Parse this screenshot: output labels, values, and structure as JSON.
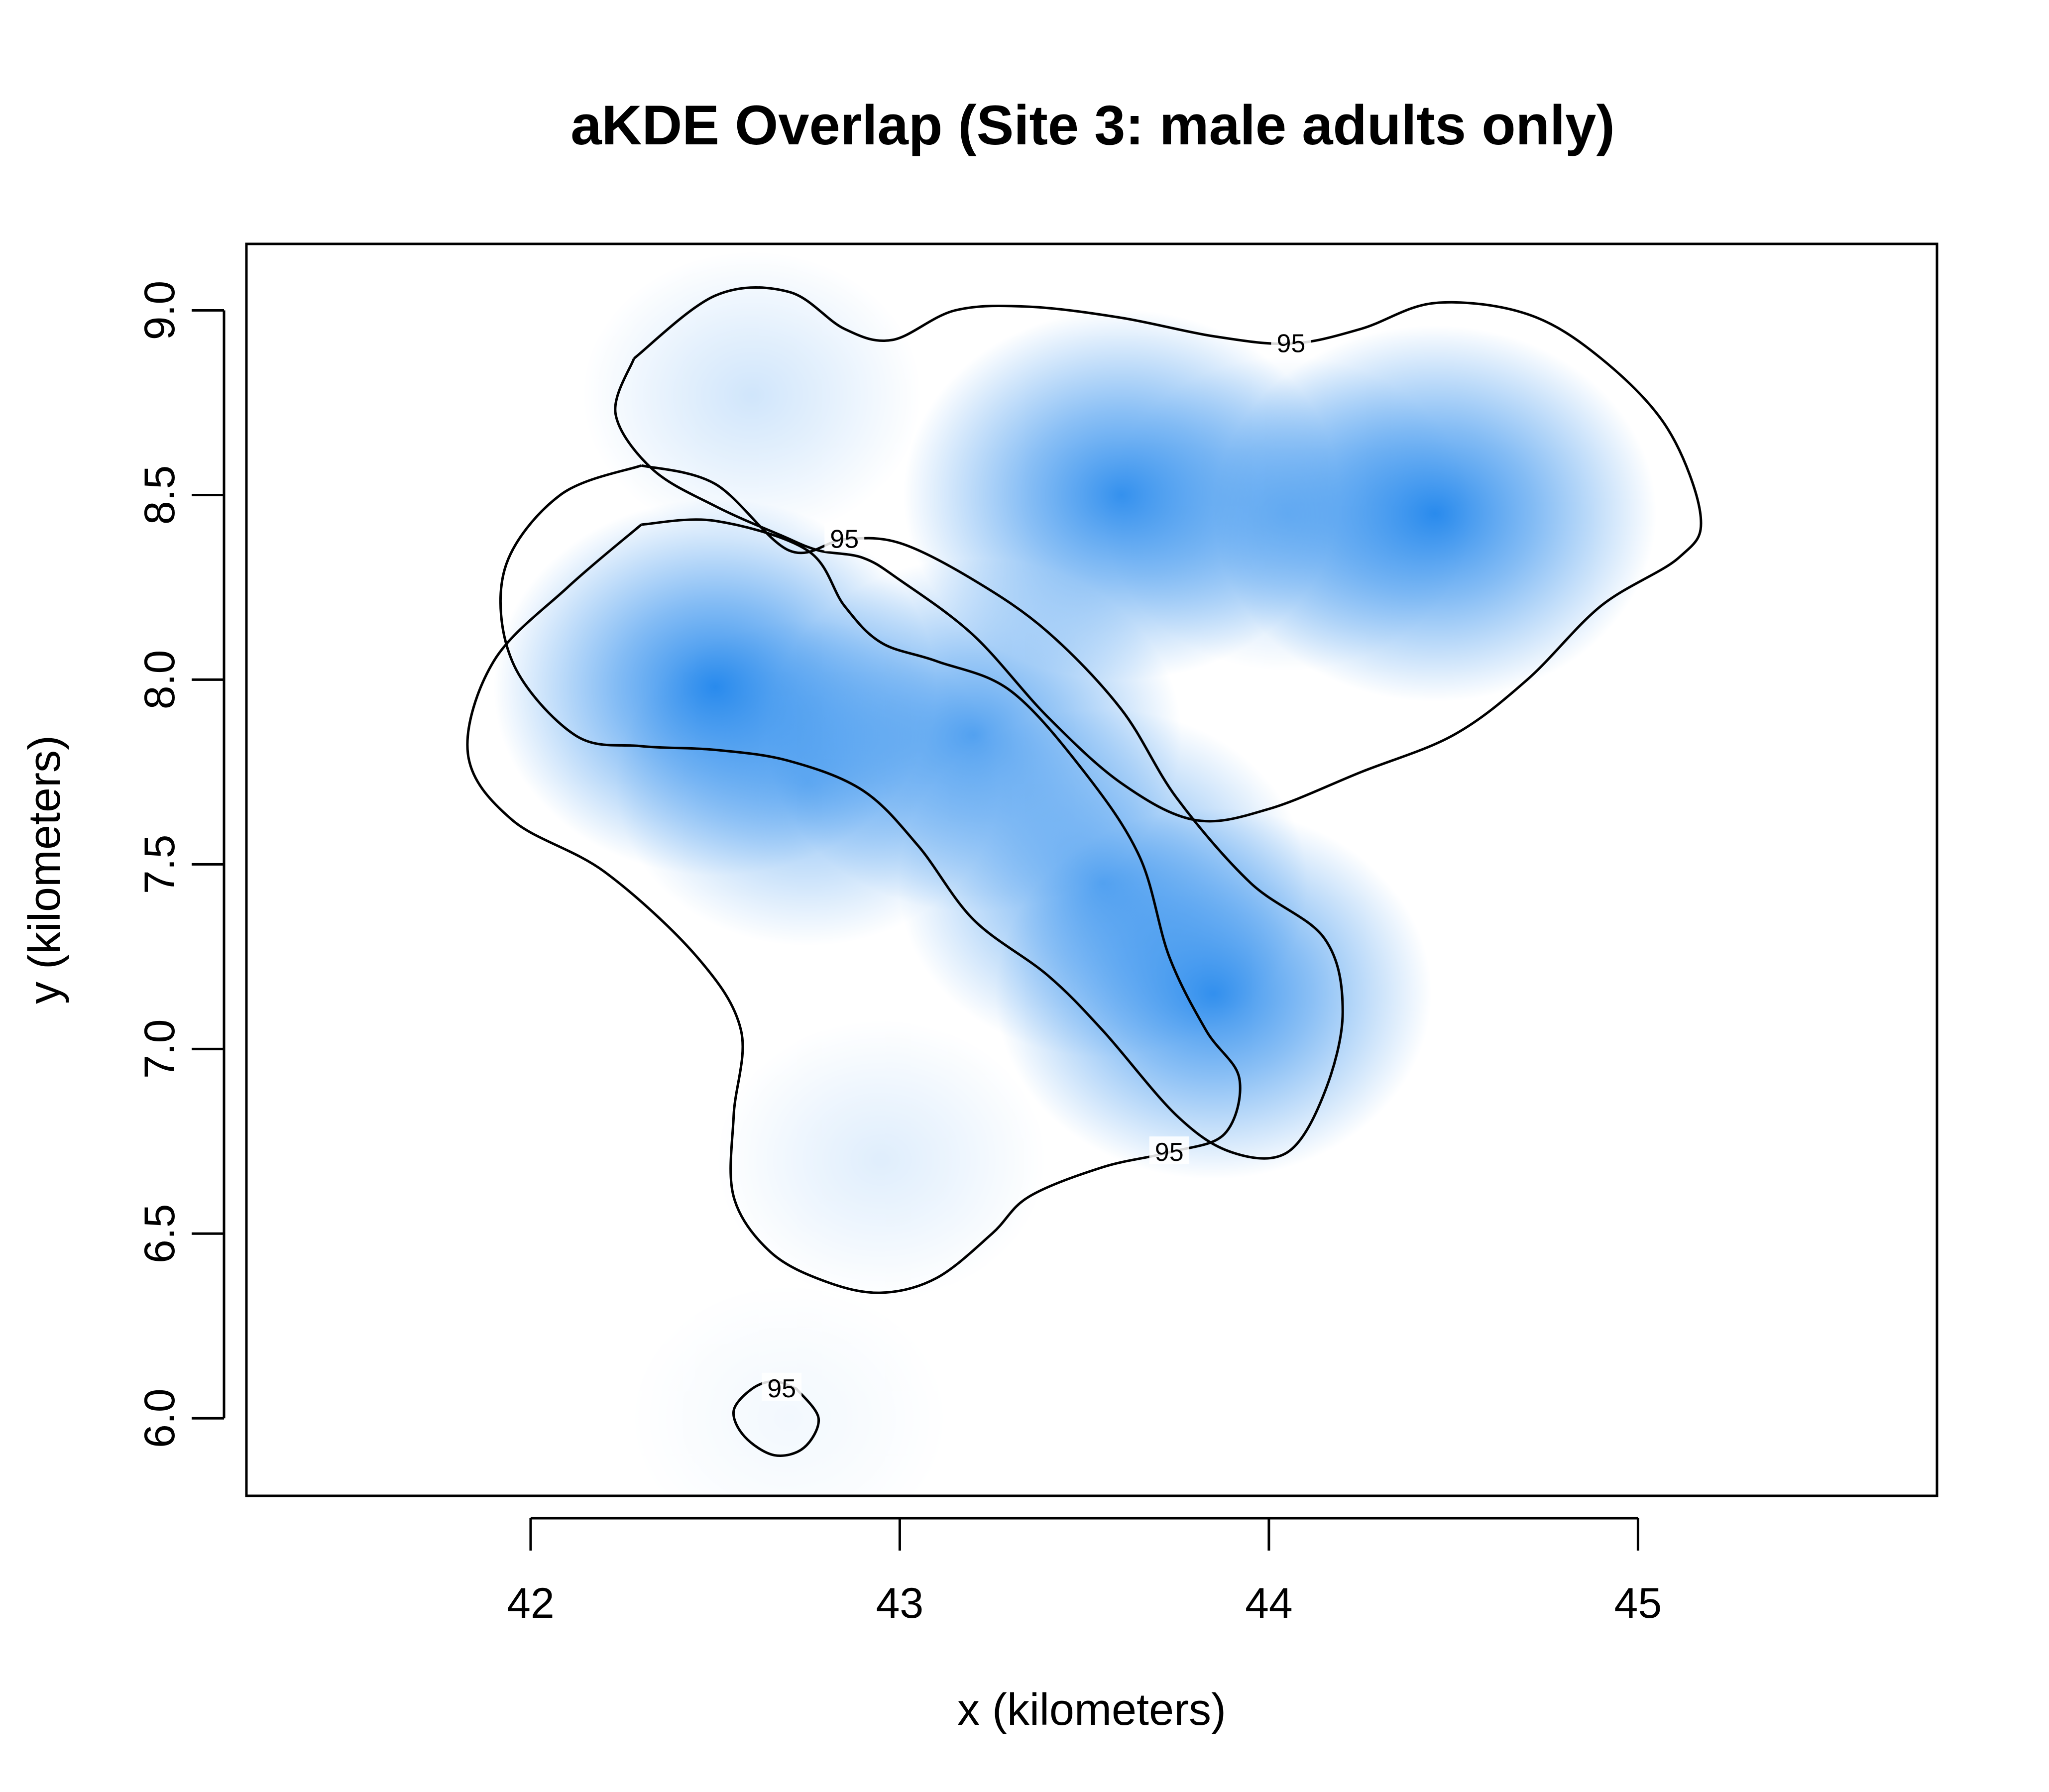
{
  "chart_data": {
    "type": "heatmap",
    "title": "aKDE Overlap (Site 3: male adults only)",
    "xlabel": "x (kilometers)",
    "ylabel": "y (kilometers)",
    "xlim": [
      41.23,
      45.81
    ],
    "ylim": [
      5.79,
      9.18
    ],
    "x_ticks": [
      42,
      43,
      44,
      45
    ],
    "y_ticks": [
      6.0,
      6.5,
      7.0,
      7.5,
      8.0,
      8.5,
      9.0
    ],
    "x_tick_labels": [
      "42",
      "43",
      "44",
      "45"
    ],
    "y_tick_labels": [
      "6.0",
      "6.5",
      "7.0",
      "7.5",
      "8.0",
      "8.5",
      "9.0"
    ],
    "grid": false,
    "legend": "none",
    "colors": {
      "density": "#1f85ec",
      "background": "#ffffff",
      "contour": "#000000"
    },
    "density_peaks": [
      {
        "x": 42.5,
        "y": 7.98,
        "weight": 1.0
      },
      {
        "x": 42.75,
        "y": 7.72,
        "weight": 0.55
      },
      {
        "x": 43.2,
        "y": 7.85,
        "weight": 0.8
      },
      {
        "x": 43.55,
        "y": 7.45,
        "weight": 0.75
      },
      {
        "x": 43.85,
        "y": 7.15,
        "weight": 0.95
      },
      {
        "x": 43.6,
        "y": 8.5,
        "weight": 0.95
      },
      {
        "x": 44.45,
        "y": 8.45,
        "weight": 1.0
      },
      {
        "x": 44.05,
        "y": 8.45,
        "weight": 0.45
      },
      {
        "x": 42.6,
        "y": 8.77,
        "weight": 0.22
      },
      {
        "x": 42.95,
        "y": 6.7,
        "weight": 0.15
      },
      {
        "x": 42.7,
        "y": 6.0,
        "weight": 0.06
      }
    ],
    "contour_level_label": "95",
    "contours": [
      {
        "label": "95",
        "label_at": [
          44.06,
          8.91
        ],
        "points": [
          [
            42.28,
            8.87
          ],
          [
            42.5,
            9.04
          ],
          [
            42.7,
            9.05
          ],
          [
            42.85,
            8.95
          ],
          [
            42.98,
            8.92
          ],
          [
            43.15,
            9.0
          ],
          [
            43.35,
            9.01
          ],
          [
            43.6,
            8.98
          ],
          [
            43.85,
            8.93
          ],
          [
            44.06,
            8.91
          ],
          [
            44.25,
            8.95
          ],
          [
            44.45,
            9.02
          ],
          [
            44.7,
            8.99
          ],
          [
            44.9,
            8.87
          ],
          [
            45.08,
            8.68
          ],
          [
            45.17,
            8.44
          ],
          [
            45.11,
            8.33
          ],
          [
            44.9,
            8.2
          ],
          [
            44.7,
            8.0
          ],
          [
            44.5,
            7.85
          ],
          [
            44.25,
            7.75
          ],
          [
            44.0,
            7.65
          ],
          [
            43.8,
            7.62
          ],
          [
            43.6,
            7.72
          ],
          [
            43.4,
            7.9
          ],
          [
            43.2,
            8.12
          ],
          [
            43.0,
            8.27
          ],
          [
            42.9,
            8.33
          ],
          [
            42.78,
            8.35
          ],
          [
            42.68,
            8.39
          ],
          [
            42.5,
            8.47
          ],
          [
            42.33,
            8.57
          ],
          [
            42.23,
            8.72
          ],
          [
            42.28,
            8.87
          ]
        ]
      },
      {
        "label": "95",
        "label_at": [
          42.85,
          8.38
        ],
        "points": [
          [
            42.3,
            8.58
          ],
          [
            42.5,
            8.53
          ],
          [
            42.7,
            8.35
          ],
          [
            42.85,
            8.38
          ],
          [
            43.0,
            8.37
          ],
          [
            43.2,
            8.27
          ],
          [
            43.4,
            8.13
          ],
          [
            43.6,
            7.92
          ],
          [
            43.75,
            7.68
          ],
          [
            43.95,
            7.45
          ],
          [
            44.15,
            7.3
          ],
          [
            44.2,
            7.1
          ],
          [
            44.15,
            6.88
          ],
          [
            44.05,
            6.72
          ],
          [
            43.9,
            6.72
          ],
          [
            43.75,
            6.82
          ],
          [
            43.55,
            7.05
          ],
          [
            43.4,
            7.2
          ],
          [
            43.2,
            7.35
          ],
          [
            43.05,
            7.55
          ],
          [
            42.9,
            7.7
          ],
          [
            42.7,
            7.78
          ],
          [
            42.5,
            7.81
          ],
          [
            42.3,
            7.82
          ],
          [
            42.12,
            7.85
          ],
          [
            41.95,
            8.05
          ],
          [
            41.93,
            8.3
          ],
          [
            42.08,
            8.5
          ],
          [
            42.3,
            8.58
          ]
        ]
      },
      {
        "label": "95",
        "label_at": [
          43.73,
          6.72
        ],
        "points": [
          [
            42.3,
            8.42
          ],
          [
            42.5,
            8.43
          ],
          [
            42.75,
            8.35
          ],
          [
            42.85,
            8.2
          ],
          [
            42.95,
            8.1
          ],
          [
            43.1,
            8.05
          ],
          [
            43.3,
            7.97
          ],
          [
            43.5,
            7.75
          ],
          [
            43.65,
            7.52
          ],
          [
            43.73,
            7.25
          ],
          [
            43.83,
            7.05
          ],
          [
            43.92,
            6.92
          ],
          [
            43.88,
            6.77
          ],
          [
            43.73,
            6.72
          ],
          [
            43.55,
            6.68
          ],
          [
            43.35,
            6.6
          ],
          [
            43.25,
            6.5
          ],
          [
            43.1,
            6.38
          ],
          [
            42.95,
            6.34
          ],
          [
            42.8,
            6.37
          ],
          [
            42.65,
            6.45
          ],
          [
            42.55,
            6.6
          ],
          [
            42.55,
            6.82
          ],
          [
            42.57,
            7.05
          ],
          [
            42.45,
            7.25
          ],
          [
            42.2,
            7.48
          ],
          [
            41.95,
            7.62
          ],
          [
            41.83,
            7.8
          ],
          [
            41.9,
            8.05
          ],
          [
            42.1,
            8.25
          ],
          [
            42.3,
            8.42
          ]
        ]
      },
      {
        "label": "95",
        "label_at": [
          42.68,
          6.08
        ],
        "points": [
          [
            42.72,
            6.08
          ],
          [
            42.78,
            6.0
          ],
          [
            42.74,
            5.92
          ],
          [
            42.66,
            5.9
          ],
          [
            42.58,
            5.95
          ],
          [
            42.55,
            6.02
          ],
          [
            42.6,
            6.08
          ],
          [
            42.66,
            6.1
          ],
          [
            42.72,
            6.08
          ]
        ]
      }
    ]
  }
}
